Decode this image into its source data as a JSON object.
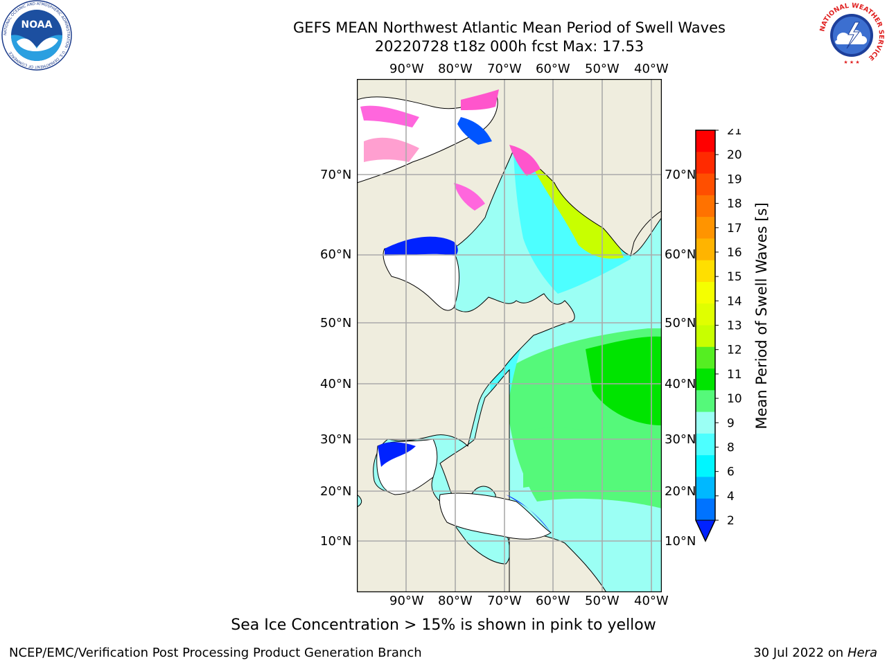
{
  "header": {
    "title_line1": "GEFS MEAN Northwest Atlantic Mean Period of Swell Waves",
    "title_line2": "20220728 t18z 000h fcst   Max: 17.53"
  },
  "map": {
    "lon_labels": [
      "90°W",
      "80°W",
      "70°W",
      "60°W",
      "50°W",
      "40°W"
    ],
    "lat_labels": [
      "70°N",
      "60°N",
      "50°N",
      "40°N",
      "30°N",
      "20°N",
      "10°N"
    ]
  },
  "colorbar": {
    "label": "Mean Period of Swell Waves [s]",
    "ticks": [
      "21",
      "20",
      "19",
      "18",
      "17",
      "16",
      "15",
      "14",
      "13",
      "12",
      "11",
      "10",
      "9",
      "8",
      "6",
      "4",
      "2"
    ],
    "colors": [
      "#ff0000",
      "#ff2a00",
      "#ff4f00",
      "#ff7200",
      "#ff9400",
      "#ffb400",
      "#ffdf00",
      "#f5ff00",
      "#e0ff00",
      "#c8ff00",
      "#55ee22",
      "#00e400",
      "#55f97a",
      "#9bfff4",
      "#4dffff",
      "#00f6ff",
      "#00b8ff",
      "#0073ff"
    ],
    "extend_color": "#0022ff"
  },
  "logos": {
    "noaa_text": "NOAA",
    "noaa_ring_text": "NATIONAL OCEANIC AND ATMOSPHERIC ADMINISTRATION · U.S. DEPARTMENT OF COMMERCE",
    "nws_ring_text": "NATIONAL WEATHER SERVICE"
  },
  "footer": {
    "note": "Sea Ice Concentration > 15% is shown in pink to yellow",
    "credit": "NCEP/EMC/Verification Post Processing Product Generation Branch",
    "date_text": "30 Jul 2022 on ",
    "host": "Hera"
  }
}
